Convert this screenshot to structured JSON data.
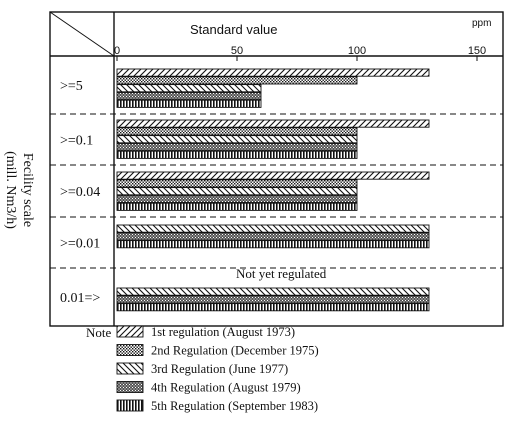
{
  "chart_data": {
    "type": "bar",
    "orientation": "horizontal",
    "title": "Standard value",
    "unit": "ppm",
    "ylabel_line1": "Fecility scale",
    "ylabel_line2": "(mill. Nm3/h)",
    "xlim": [
      0,
      160
    ],
    "xticks": [
      "0",
      "50",
      "100",
      "150"
    ],
    "xtick_values": [
      0,
      50,
      100,
      150
    ],
    "grid": false,
    "legend_position": "bottom-left",
    "legend_title": "Note",
    "categories": [
      ">=5",
      ">=0.1",
      ">=0.04",
      ">=0.01",
      "0.01=>"
    ],
    "category_labels": [
      ">=5",
      ">=0.1",
      ">=0.04",
      ">=0.01",
      "0.01=>"
    ],
    "series": [
      {
        "name": "1st regulation (August 1973)",
        "pattern": "diag-right",
        "values": [
          130,
          130,
          130,
          null,
          null
        ]
      },
      {
        "name": "2nd Regulation (December 1975)",
        "pattern": "dots",
        "values": [
          100,
          100,
          100,
          null,
          null
        ]
      },
      {
        "name": "3rd Regulation (June 1977)",
        "pattern": "diag-left",
        "values": [
          60,
          100,
          100,
          130,
          130
        ]
      },
      {
        "name": "4th Regulation (August 1979)",
        "pattern": "dense",
        "values": [
          60,
          100,
          100,
          130,
          130
        ]
      },
      {
        "name": "5th Regulation (September 1983)",
        "pattern": "vertical",
        "values": [
          60,
          100,
          100,
          130,
          130
        ]
      }
    ],
    "annotations": [
      {
        "category": "0.01=>",
        "text": "Not yet regulated"
      }
    ]
  }
}
